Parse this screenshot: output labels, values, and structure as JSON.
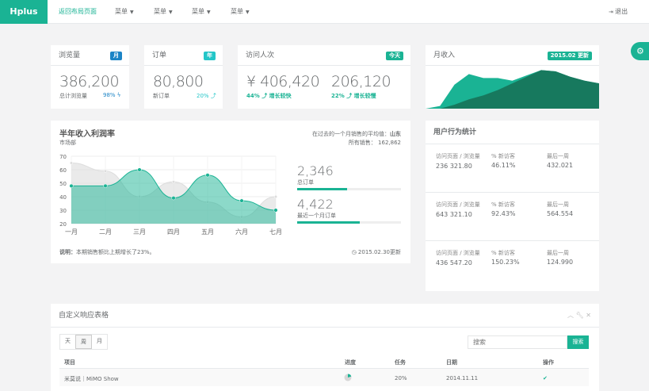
{
  "nav": {
    "brand": "Hplus",
    "home_link": "返回布局页面",
    "menus": [
      "菜单",
      "菜单",
      "菜单",
      "菜单"
    ],
    "logout": "退出"
  },
  "cards": [
    {
      "title": "浏览量",
      "badge": "月",
      "badge_color": "#1c84c6",
      "value": "386,200",
      "label": "总计浏览量",
      "stat": "98%",
      "stat_icon": "bolt-icon",
      "stat_color": "#1c84c6"
    },
    {
      "title": "订单",
      "badge": "年",
      "badge_color": "#23c6c8",
      "value": "80,800",
      "label": "新订单",
      "stat": "20%",
      "stat_icon": "level-up-icon",
      "stat_color": "#23c6c8"
    },
    {
      "title": "访问人次",
      "badge": "今天",
      "badge_color": "#1ab394",
      "value1": "¥ 406,420",
      "stat1": "44% ⤴ 增长较快",
      "value2": "206,120",
      "stat2": "22% ⤴ 增长较慢"
    },
    {
      "title": "月收入",
      "badge": "2015.02 更新",
      "badge_color": "#1ab394"
    }
  ],
  "profit": {
    "title": "半年收入利润率",
    "subtitle": "市场部",
    "avg_label": "在过去的一个月销售的平均值：",
    "avg_value": "山东",
    "total_label": "所有销售：",
    "total_value": "162,862",
    "stats": [
      {
        "value": "2,346",
        "label": "总订单",
        "progress": 48
      },
      {
        "value": "4,422",
        "label": "最近一个月订单",
        "progress": 60
      }
    ],
    "note_label": "说明：",
    "note": "本期销售额比上期增长了23%。",
    "updated": "2015.02.30更新"
  },
  "chart_data": [
    {
      "type": "area",
      "categories": [
        "一月",
        "二月",
        "三月",
        "四月",
        "五月",
        "六月",
        "七月"
      ],
      "ylim": [
        20,
        70
      ],
      "yticks": [
        70,
        60,
        50,
        40,
        30,
        20
      ],
      "grid": true,
      "series": [
        {
          "values": [
            65,
            59,
            40,
            51,
            36,
            25,
            40
          ],
          "color": "#dcdcdc"
        },
        {
          "values": [
            48,
            48,
            60,
            39,
            56,
            37,
            30
          ],
          "color": "#1ab394"
        }
      ]
    },
    {
      "type": "area",
      "series": [
        {
          "values": [
            0,
            2,
            18,
            26,
            23,
            23,
            21,
            25,
            29,
            28,
            24,
            21,
            19
          ],
          "color": "#1ab394"
        },
        {
          "values": [
            0,
            0,
            3,
            7,
            10,
            14,
            19,
            24,
            29,
            28,
            24,
            21,
            19
          ],
          "color": "#17795e"
        }
      ]
    }
  ],
  "user_stats": {
    "title": "用户行为统计",
    "rows": [
      {
        "c1_label": "访问页面 / 浏览量",
        "c1": "236 321.80",
        "c2_label": "% 新访客",
        "c2": "46.11%",
        "c3_label": "最后一周",
        "c3": "432.021"
      },
      {
        "c1_label": "访问页面 / 浏览量",
        "c1": "643 321.10",
        "c2_label": "% 新访客",
        "c2": "92.43%",
        "c3_label": "最后一周",
        "c3": "564.554"
      },
      {
        "c1_label": "访问页面 / 浏览量",
        "c1": "436 547.20",
        "c2_label": "% 新访客",
        "c2": "150.23%",
        "c3_label": "最后一周",
        "c3": "124.990"
      }
    ]
  },
  "table": {
    "title": "自定义响应表格",
    "periods": [
      "天",
      "周",
      "月"
    ],
    "active_period": "周",
    "search_placeholder": "搜索",
    "search_button": "搜索",
    "headers": [
      "项目",
      "进度",
      "任务",
      "日期",
      "操作"
    ],
    "rows": [
      {
        "project": "米莫说｜MiMO Show",
        "progress_pie": 20,
        "task": "20%",
        "date": "2014.11.11",
        "action": "check-icon"
      }
    ]
  }
}
